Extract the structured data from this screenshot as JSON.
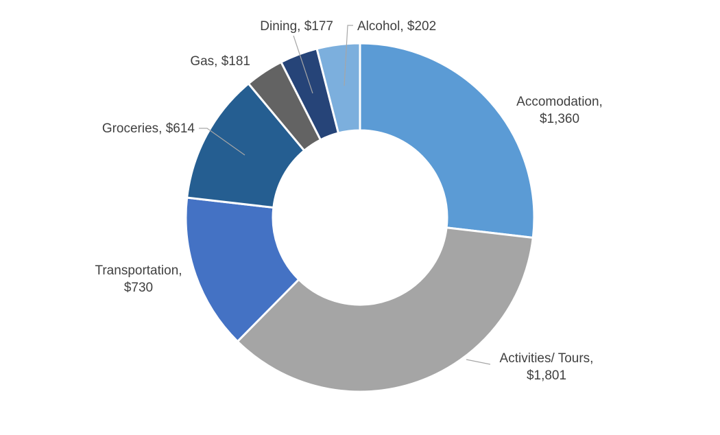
{
  "chart_data": {
    "type": "pie",
    "variant": "donut",
    "title": "",
    "categories": [
      "Accomodation",
      "Activities/ Tours",
      "Transportation",
      "Groceries",
      "Gas",
      "Dining",
      "Alcohol"
    ],
    "values": [
      1360,
      1801,
      730,
      614,
      181,
      177,
      202
    ],
    "series": [
      {
        "name": "Accomodation",
        "value": 1360,
        "color": "#5b9bd5",
        "label_lines": [
          "Accomodation,",
          "$1,360"
        ]
      },
      {
        "name": "Activities/ Tours",
        "value": 1801,
        "color": "#a5a5a5",
        "label_lines": [
          "Activities/ Tours,",
          "$1,801"
        ]
      },
      {
        "name": "Transportation",
        "value": 730,
        "color": "#4472c4",
        "label_lines": [
          "Transportation,",
          "$730"
        ]
      },
      {
        "name": "Groceries",
        "value": 614,
        "color": "#255e91",
        "label_lines": [
          "Groceries,  $614"
        ]
      },
      {
        "name": "Gas",
        "value": 181,
        "color": "#636363",
        "label_lines": [
          "Gas,  $181"
        ]
      },
      {
        "name": "Dining",
        "value": 177,
        "color": "#264478",
        "label_lines": [
          "Dining,  $177"
        ]
      },
      {
        "name": "Alcohol",
        "value": 202,
        "color": "#7cafdd",
        "label_lines": [
          "Alcohol,  $202"
        ]
      }
    ],
    "legend": "none"
  }
}
